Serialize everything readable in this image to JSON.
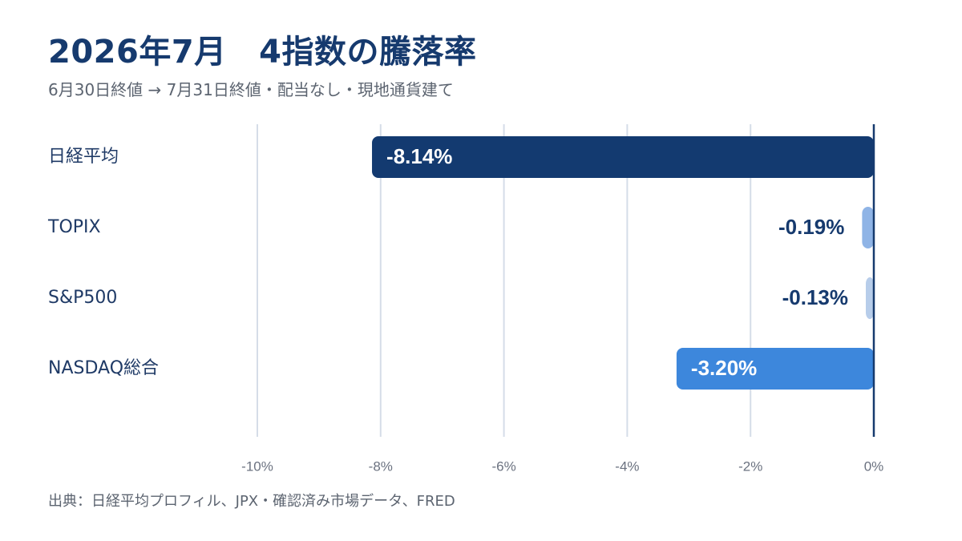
{
  "title": "2026年7月　4指数の騰落率",
  "subtitle": "6月30日終値 → 7月31日終値・配当なし・現地通貨建て",
  "source": "出典：日経平均プロフィル、JPX・確認済み市場データ、FRED",
  "colors": {
    "title": "#163a6e",
    "label": "#1f3a66",
    "grid": "#d5dde8",
    "axis_line": "#163a6e",
    "tick": "#6b7280"
  },
  "chart_data": {
    "type": "bar",
    "orientation": "horizontal",
    "categories": [
      "日経平均",
      "TOPIX",
      "S&P500",
      "NASDAQ総合"
    ],
    "values": [
      -8.14,
      -0.19,
      -0.13,
      -3.2
    ],
    "value_labels": [
      "-8.14%",
      "-0.19%",
      "-0.13%",
      "-3.20%"
    ],
    "bar_colors": [
      "#133a70",
      "#8fb4e6",
      "#b7cdea",
      "#3d87dc"
    ],
    "xlim": [
      -10,
      0
    ],
    "x_ticks": [
      -10,
      -8,
      -6,
      -4,
      -2,
      0
    ],
    "x_tick_labels": [
      "-10%",
      "-8%",
      "-6%",
      "-4%",
      "-2%",
      "0%"
    ],
    "grid": true
  }
}
